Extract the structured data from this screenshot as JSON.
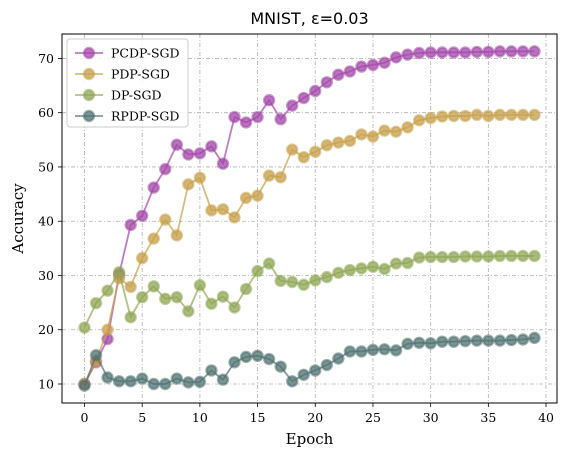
{
  "chart_data": {
    "type": "line",
    "title": "MNIST, ε=0.03",
    "xlabel": "Epoch",
    "ylabel": "Accuracy",
    "xlim": [
      -1.95,
      40.95
    ],
    "ylim": [
      6.5,
      74.5
    ],
    "xticks": [
      0,
      5,
      10,
      15,
      20,
      25,
      30,
      35,
      40
    ],
    "yticks": [
      10,
      20,
      30,
      40,
      50,
      60,
      70
    ],
    "grid": true,
    "legend_position": "upper-left",
    "x": [
      0,
      1,
      2,
      3,
      4,
      5,
      6,
      7,
      8,
      9,
      10,
      11,
      12,
      13,
      14,
      15,
      16,
      17,
      18,
      19,
      20,
      21,
      22,
      23,
      24,
      25,
      26,
      27,
      28,
      29,
      30,
      31,
      32,
      33,
      34,
      35,
      36,
      37,
      38,
      39
    ],
    "series": [
      {
        "name": "PCDP-SGD",
        "color": "#a245a8",
        "values": [
          10,
          14,
          18.3,
          30.2,
          39.3,
          41,
          46.2,
          49.6,
          54.1,
          52.3,
          52.5,
          53.8,
          50.6,
          59.2,
          58.2,
          59.2,
          62.3,
          58.8,
          61.3,
          62.7,
          64,
          65.6,
          67,
          67.6,
          68.5,
          68.8,
          69.2,
          70.2,
          70.7,
          71,
          71.1,
          71.1,
          71.1,
          71.1,
          71.2,
          71.2,
          71.3,
          71.3,
          71.3,
          71.3
        ]
      },
      {
        "name": "PDP-SGD",
        "color": "#c69f48",
        "values": [
          10,
          14.2,
          20,
          29.5,
          27.9,
          33.2,
          36.8,
          40.3,
          37.4,
          46.8,
          48,
          42,
          42.2,
          40.7,
          44.3,
          44.7,
          48.4,
          48.1,
          53.2,
          51.8,
          52.8,
          54,
          54.5,
          54.8,
          56,
          55.6,
          56.7,
          56.5,
          57.3,
          58.6,
          59,
          59.3,
          59.4,
          59.4,
          59.6,
          59.4,
          59.6,
          59.6,
          59.6,
          59.6
        ]
      },
      {
        "name": "DP-SGD",
        "color": "#8ea553",
        "values": [
          20.4,
          24.9,
          27.2,
          30.6,
          22.3,
          26,
          28,
          25.7,
          26,
          23.4,
          28.2,
          24.8,
          26.1,
          24.1,
          27.5,
          30.8,
          32.2,
          29,
          28.8,
          28.3,
          29.1,
          29.7,
          30.5,
          31,
          31.3,
          31.6,
          31.2,
          32.2,
          32.3,
          33.3,
          33.4,
          33.4,
          33.4,
          33.5,
          33.5,
          33.5,
          33.6,
          33.6,
          33.6,
          33.6
        ]
      },
      {
        "name": "RPDP-SGD",
        "color": "#4f7070",
        "values": [
          9.7,
          15.3,
          11.2,
          10.5,
          10.5,
          11,
          10,
          10,
          11,
          10.3,
          10.4,
          12.5,
          10.8,
          14,
          15,
          15.2,
          14.6,
          13.2,
          10.5,
          11.7,
          12.5,
          13.5,
          14.7,
          16,
          16,
          16.3,
          16.4,
          16.2,
          17.4,
          17.6,
          17.5,
          17.8,
          17.8,
          17.9,
          18,
          18,
          18,
          18.1,
          18.2,
          18.5
        ]
      }
    ]
  }
}
